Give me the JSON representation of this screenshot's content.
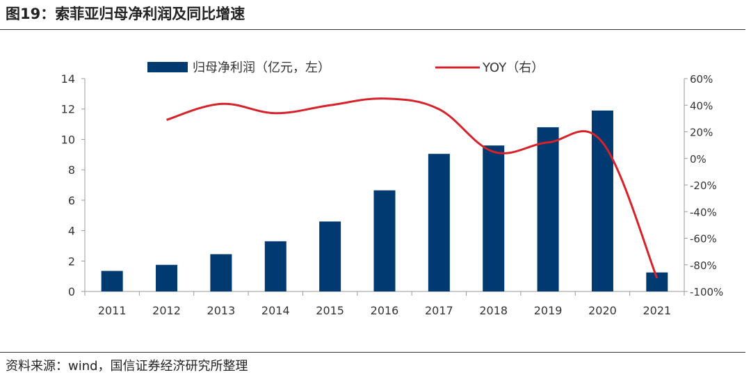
{
  "title": "图19：索菲亚归母净利润及同比增速",
  "source": "资料来源：wind，国信证券经济研究所整理",
  "colors": {
    "bar": "#003A70",
    "line": "#D7222A",
    "axis": "#999999",
    "text": "#333333"
  },
  "chart_data": {
    "type": "bar+line",
    "categories": [
      "2011",
      "2012",
      "2013",
      "2014",
      "2015",
      "2016",
      "2017",
      "2018",
      "2019",
      "2020",
      "2021"
    ],
    "series": [
      {
        "name": "归母净利润（亿元，左）",
        "type": "bar",
        "axis": "left",
        "values": [
          1.35,
          1.75,
          2.45,
          3.3,
          4.6,
          6.65,
          9.05,
          9.6,
          10.8,
          11.9,
          1.25
        ]
      },
      {
        "name": "YOY（右）",
        "type": "line",
        "axis": "right",
        "values": [
          null,
          29,
          41,
          34,
          40,
          45,
          37,
          5,
          12,
          12,
          -90
        ]
      }
    ],
    "left_axis": {
      "min": 0,
      "max": 14,
      "ticks": [
        "0",
        "2",
        "4",
        "6",
        "8",
        "10",
        "12",
        "14"
      ]
    },
    "right_axis": {
      "min": -100,
      "max": 60,
      "ticks": [
        "-100%",
        "-80%",
        "-60%",
        "-40%",
        "-20%",
        "0%",
        "20%",
        "40%",
        "60%"
      ]
    },
    "legend": [
      "归母净利润（亿元，左）",
      "YOY（右）"
    ],
    "legend_position": "top"
  }
}
